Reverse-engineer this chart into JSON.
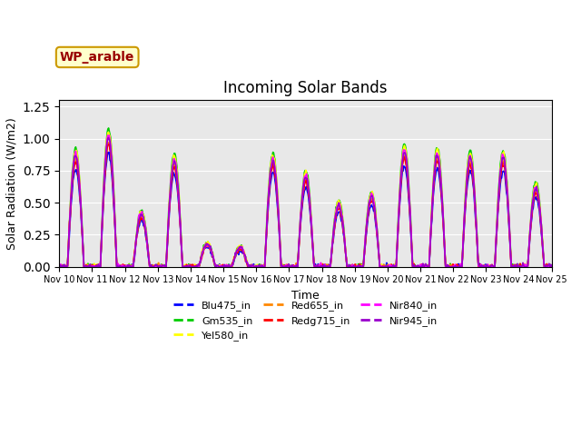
{
  "title": "Incoming Solar Bands",
  "xlabel": "Time",
  "ylabel": "Solar Radiation (W/m2)",
  "annotation_text": "WP_arable",
  "annotation_bg": "#ffffcc",
  "annotation_border": "#cc9900",
  "annotation_color": "#990000",
  "bg_color": "#e8e8e8",
  "ylim": [
    0,
    1.3
  ],
  "series": {
    "Blu475_in": {
      "color": "#0000ff",
      "lw": 1.2
    },
    "Gm535_in": {
      "color": "#00cc00",
      "lw": 1.2
    },
    "Yel580_in": {
      "color": "#ffff00",
      "lw": 1.2
    },
    "Red655_in": {
      "color": "#ff8800",
      "lw": 1.2
    },
    "Redg715_in": {
      "color": "#ff0000",
      "lw": 1.2
    },
    "Nir840_in": {
      "color": "#ff00ff",
      "lw": 1.2
    },
    "Nir945_in": {
      "color": "#9900cc",
      "lw": 1.2
    }
  },
  "n_days": 15,
  "start_day": 10,
  "samples_per_day": 48
}
